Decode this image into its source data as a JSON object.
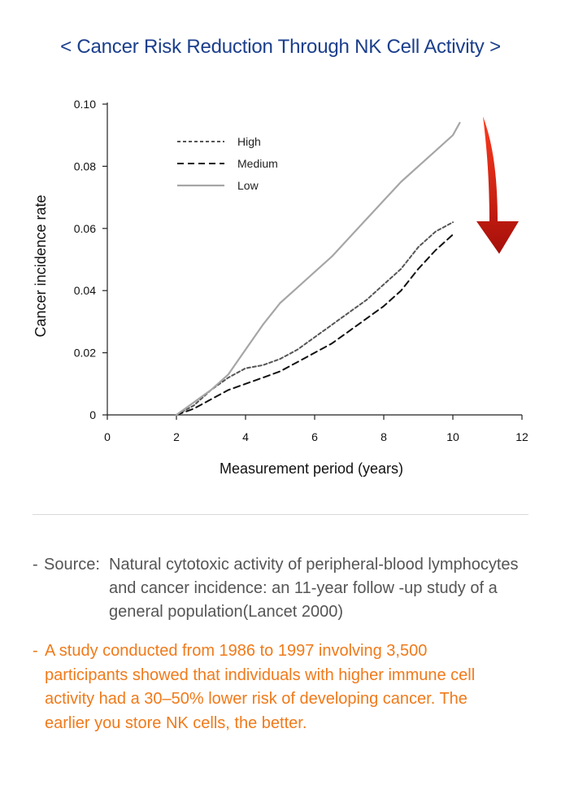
{
  "header": {
    "title": "< Cancer Risk Reduction Through NK Cell Activity >"
  },
  "chart_data": {
    "type": "line",
    "title": "< Cancer Risk Reduction Through NK Cell Activity >",
    "xlabel": "Measurement period (years)",
    "ylabel": "Cancer incidence rate",
    "xlim": [
      0,
      12
    ],
    "ylim": [
      0,
      0.1
    ],
    "x_ticks": [
      {
        "value": 0,
        "label": "0"
      },
      {
        "value": 2,
        "label": "2"
      },
      {
        "value": 4,
        "label": "4"
      },
      {
        "value": 6,
        "label": "6"
      },
      {
        "value": 8,
        "label": "8"
      },
      {
        "value": 10,
        "label": "10"
      },
      {
        "value": 12,
        "label": "12"
      }
    ],
    "y_ticks": [
      {
        "value": 0,
        "label": "0"
      },
      {
        "value": 0.02,
        "label": "0.02"
      },
      {
        "value": 0.04,
        "label": "0.04"
      },
      {
        "value": 0.06,
        "label": "0.06"
      },
      {
        "value": 0.08,
        "label": "0.08"
      },
      {
        "value": 0.1,
        "label": "0.10"
      }
    ],
    "grid": false,
    "legend_position": "top-left",
    "series": [
      {
        "name": "High",
        "style": "dotted",
        "color": "#555555",
        "x": [
          2.0,
          2.5,
          3.0,
          3.5,
          4.0,
          4.5,
          5.0,
          5.5,
          6.0,
          6.5,
          7.0,
          7.5,
          8.0,
          8.5,
          9.0,
          9.5,
          10.0
        ],
        "y": [
          0.0,
          0.003,
          0.008,
          0.012,
          0.015,
          0.016,
          0.018,
          0.021,
          0.025,
          0.029,
          0.033,
          0.037,
          0.042,
          0.047,
          0.054,
          0.059,
          0.062
        ]
      },
      {
        "name": "Medium",
        "style": "dashed",
        "color": "#111111",
        "x": [
          2.0,
          2.5,
          3.0,
          3.5,
          4.0,
          4.5,
          5.0,
          5.5,
          6.0,
          6.5,
          7.0,
          7.5,
          8.0,
          8.5,
          9.0,
          9.5,
          10.0
        ],
        "y": [
          0.0,
          0.002,
          0.005,
          0.008,
          0.01,
          0.012,
          0.014,
          0.017,
          0.02,
          0.023,
          0.027,
          0.031,
          0.035,
          0.04,
          0.047,
          0.053,
          0.058
        ]
      },
      {
        "name": "Low",
        "style": "solid",
        "color": "#a6a6a6",
        "x": [
          2.0,
          2.5,
          3.0,
          3.5,
          4.0,
          4.5,
          5.0,
          5.5,
          6.0,
          6.5,
          7.0,
          7.5,
          8.0,
          8.5,
          9.0,
          9.5,
          10.0,
          10.2
        ],
        "y": [
          0.0,
          0.004,
          0.008,
          0.013,
          0.021,
          0.029,
          0.036,
          0.041,
          0.046,
          0.051,
          0.057,
          0.063,
          0.069,
          0.075,
          0.08,
          0.085,
          0.09,
          0.094
        ]
      }
    ],
    "annotation": {
      "type": "down-arrow",
      "meaning": "decreasing risk",
      "color_top": "#ff3b1f",
      "color_bottom": "#a50f0a"
    }
  },
  "notes": {
    "source_label": "Source:",
    "source_text": "Natural cytotoxic activity of peripheral-blood lymphocytes and cancer incidence: an 11-year follow -up study of a general population(Lancet 2000)",
    "finding_text": "A study conducted from 1986 to 1997 involving 3,500 participants showed that individuals with higher immune cell activity had a 30–50% lower risk of developing cancer. The earlier you store NK cells, the better.",
    "source_color": "#555555",
    "finding_color": "#f07a1a"
  }
}
